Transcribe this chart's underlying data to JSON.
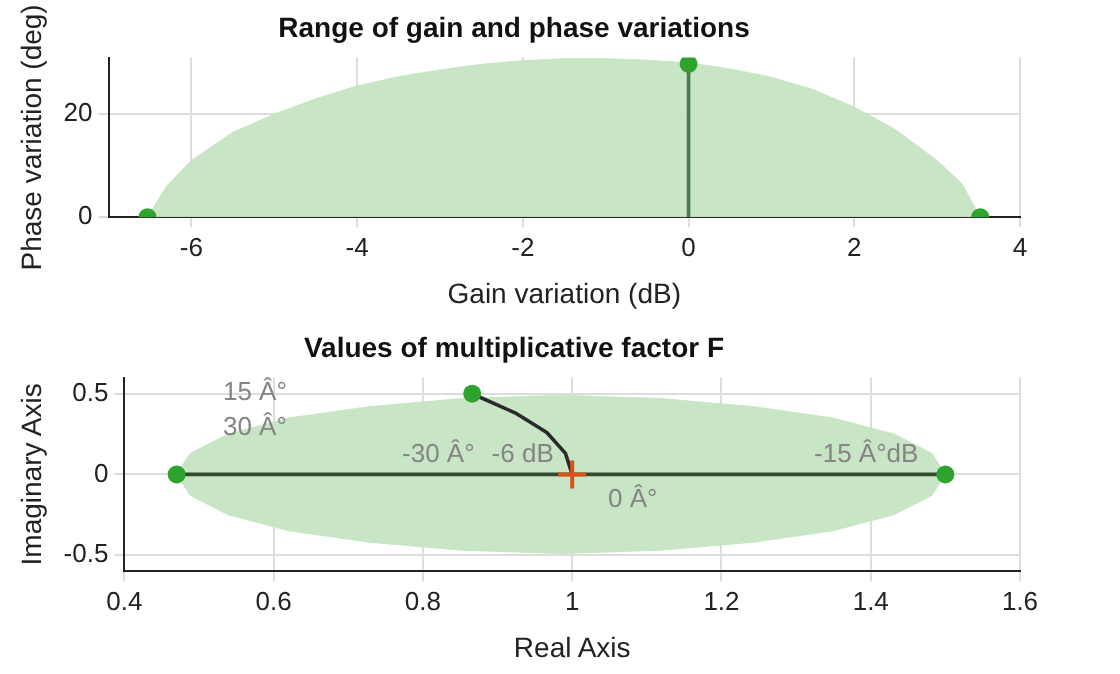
{
  "chart_data": [
    {
      "type": "area",
      "title": "Range of gain and phase variations",
      "xlabel": "Gain variation (dB)",
      "ylabel": "Phase variation (deg)",
      "xlim": [
        -7,
        4
      ],
      "xticks": [
        -6,
        -4,
        -2,
        0,
        2,
        4
      ],
      "ylim": [
        0,
        31
      ],
      "yticks": [
        0,
        20
      ],
      "grid": true,
      "legend": false,
      "series": [
        {
          "type": "area",
          "color": "#c5e4c2",
          "x": [
            -6.53,
            -6.3,
            -6,
            -5.5,
            -5,
            -4.5,
            -4,
            -3.5,
            -3,
            -2.5,
            -2,
            -1.5,
            -1,
            -0.5,
            0,
            0.5,
            1,
            1.5,
            2,
            2.5,
            3,
            3.3,
            3.52
          ],
          "values": [
            0,
            6,
            11,
            16.5,
            20,
            23,
            25.5,
            27.3,
            28.6,
            29.7,
            30.4,
            30.8,
            30.8,
            30.5,
            30,
            28.8,
            27.2,
            24.8,
            21.4,
            17,
            11,
            6.5,
            0
          ]
        },
        {
          "type": "line",
          "color": "#4f7a4f",
          "x": [
            0,
            0
          ],
          "values": [
            0,
            29.8
          ]
        },
        {
          "type": "scatter",
          "color": "#2ea32e",
          "marker": "circle",
          "x": [
            -6.53,
            0,
            3.52
          ],
          "values": [
            0,
            29.8,
            0
          ]
        }
      ]
    },
    {
      "type": "area",
      "title": "Values of multiplicative factor F",
      "xlabel": "Real Axis",
      "ylabel": "Imaginary Axis",
      "xlim": [
        0.4,
        1.6
      ],
      "xticks": [
        0.4,
        0.6,
        0.8,
        1,
        1.2,
        1.4,
        1.6
      ],
      "ylim": [
        -0.6,
        0.6
      ],
      "yticks": [
        -0.5,
        0,
        0.5
      ],
      "grid": true,
      "legend": false,
      "annotations": [
        "15 Â°",
        "30 Â°",
        "-30 Â°",
        "-6 dB",
        "0 Â°",
        "-15 Â°dB"
      ],
      "series": [
        {
          "type": "area",
          "color": "#c5e4c2",
          "x": [
            1.5,
            1.482,
            1.431,
            1.349,
            1.243,
            1.118,
            0.985,
            0.852,
            0.728,
            0.621,
            0.539,
            0.488,
            0.47,
            0.488,
            0.539,
            0.621,
            0.728,
            0.852,
            0.985,
            1.118,
            1.243,
            1.349,
            1.431,
            1.482,
            1.5
          ],
          "values": [
            0,
            0.13,
            0.25,
            0.35,
            0.42,
            0.47,
            0.49,
            0.47,
            0.42,
            0.35,
            0.25,
            0.13,
            0,
            -0.13,
            -0.25,
            -0.35,
            -0.42,
            -0.47,
            -0.49,
            -0.47,
            -0.42,
            -0.35,
            -0.25,
            -0.13,
            0
          ]
        },
        {
          "type": "line",
          "color": "#2f4a2f",
          "x": [
            0.47,
            0.7,
            1.3,
            1.5
          ],
          "values": [
            0,
            0,
            0,
            0
          ]
        },
        {
          "type": "line",
          "color": "#2a2a2a",
          "x": [
            0.866,
            0.924,
            0.966,
            0.991,
            1
          ],
          "values": [
            0.5,
            0.38,
            0.26,
            0.13,
            0
          ]
        },
        {
          "type": "scatter",
          "color": "#2ea32e",
          "marker": "circle",
          "x": [
            0.47,
            1.5,
            0.866
          ],
          "values": [
            0,
            0,
            0.5
          ]
        },
        {
          "type": "scatter",
          "color": "#d95319",
          "marker": "cross",
          "x": [
            1
          ],
          "values": [
            0
          ]
        }
      ]
    }
  ]
}
